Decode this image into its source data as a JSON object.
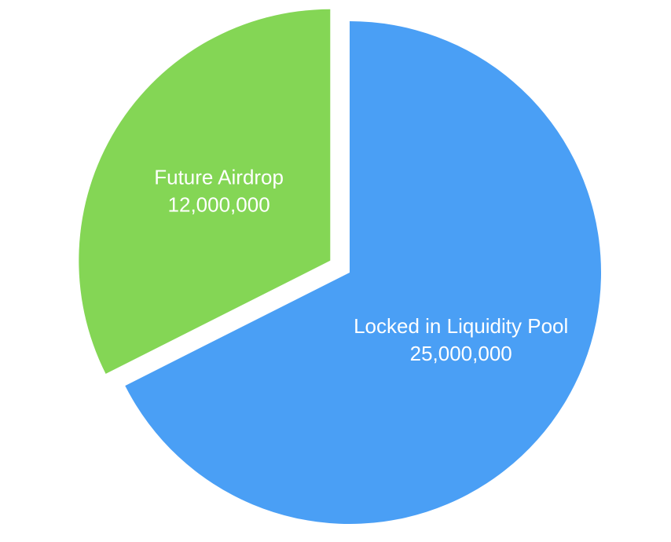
{
  "chart_data": {
    "type": "pie",
    "title": "",
    "slices": [
      {
        "label": "Locked in Liquidity Pool",
        "value": 25000000,
        "value_text": "25,000,000",
        "color": "#4a9ff5",
        "exploded": false
      },
      {
        "label": "Future Airdrop",
        "value": 12000000,
        "value_text": "12,000,000",
        "color": "#84d655",
        "exploded": true
      }
    ],
    "start": "12 o'clock, clockwise",
    "legend": "none"
  }
}
